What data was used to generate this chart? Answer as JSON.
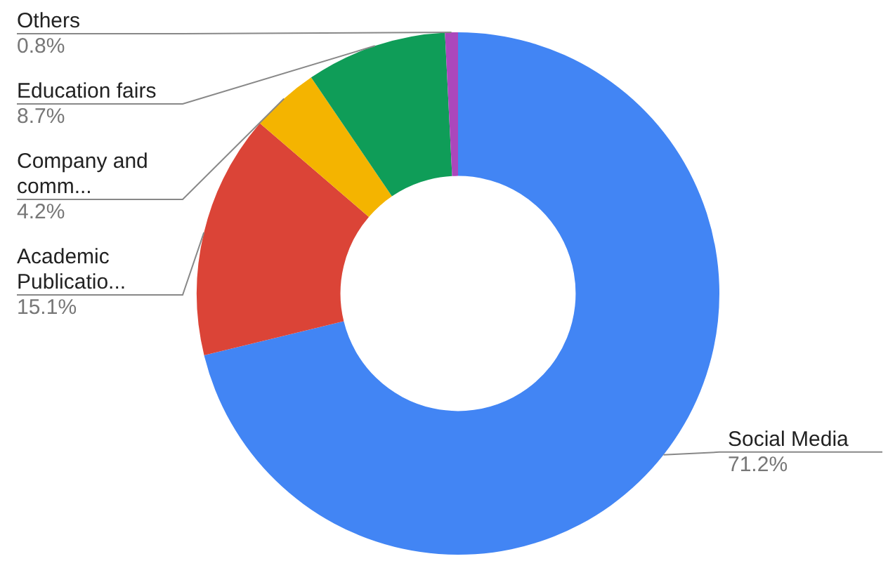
{
  "chart_data": {
    "type": "donut",
    "categories": [
      "Social Media",
      "Academic Publicatio...",
      "Company and comm...",
      "Education fairs",
      "Others"
    ],
    "values": [
      71.2,
      15.1,
      4.2,
      8.7,
      0.8
    ],
    "value_labels": [
      "71.2%",
      "15.1%",
      "4.2%",
      "8.7%",
      "0.8%"
    ],
    "colors": [
      "#4285f4",
      "#db4437",
      "#f4b400",
      "#0f9d58",
      "#ab47bc"
    ],
    "legend": false
  }
}
